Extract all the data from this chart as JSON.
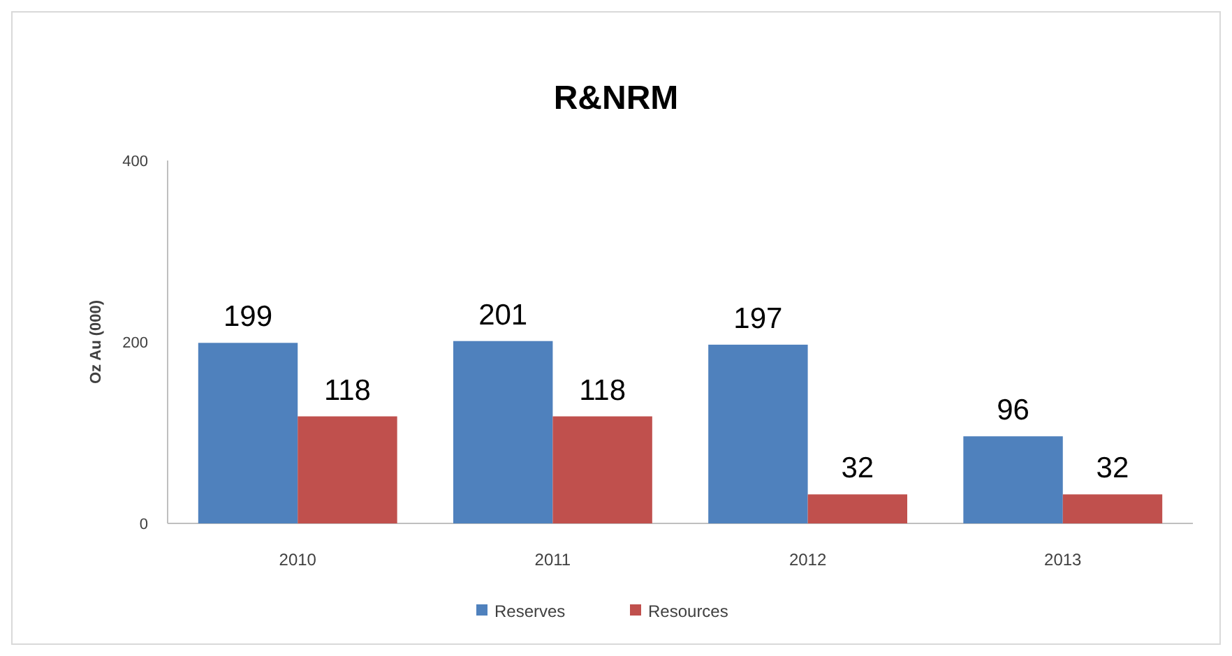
{
  "chart_data": {
    "type": "bar",
    "title": "R&NRM",
    "ylabel": "Oz Au (000)",
    "categories": [
      "2010",
      "2011",
      "2012",
      "2013"
    ],
    "series": [
      {
        "name": "Reserves",
        "color": "#4f81bd",
        "values": [
          199,
          201,
          197,
          96
        ]
      },
      {
        "name": "Resources",
        "color": "#c0504d",
        "values": [
          118,
          118,
          32,
          32
        ]
      }
    ],
    "ylim": [
      0,
      400
    ],
    "yticks": [
      0,
      200,
      400
    ],
    "data_labels": true,
    "legend": "bottom",
    "grid": false
  }
}
